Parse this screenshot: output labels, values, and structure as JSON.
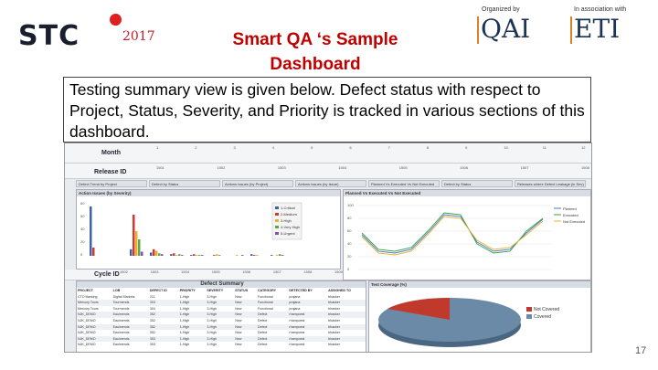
{
  "header": {
    "brand": "STC",
    "brand_year": "2017",
    "title": "Smart QA ‘s Sample Dashboard",
    "organized_by": "Organized by",
    "organizer": "QAI",
    "association": "In association with",
    "partner": "ETI"
  },
  "summary": "Testing summary view is given below. Defect status with respect to Project, Status, Severity, and Priority is tracked in various sections of this dashboard.",
  "dashboard": {
    "month_label": "Month",
    "release_label": "Release ID",
    "cycle_label": "Cycle ID",
    "tabs": [
      "Defect Trend by Project",
      "Defect by Status",
      "Actions Issues (by Project)",
      "Actions Issues (by Issue)",
      "Planned Vs Executed Vs Not Executed",
      "Defect by Status",
      "Releases where Defect Leakage (in Sev)"
    ],
    "severity_panel": "Action Issues (by Severity)",
    "planned_panel": "Planned Vs Executed Vs Not Executed",
    "defect_summary_title": "Defect Summary",
    "coverage_title": "Test Coverage (%)",
    "severity_legend": [
      "1-Critical",
      "2-Medium",
      "3-High",
      "4-Very High",
      "5-Urgent"
    ],
    "planned_legend": [
      "Planned",
      "Executed",
      "Not Executed"
    ],
    "coverage_legend": [
      "Not Covered",
      "Covered"
    ],
    "table_columns": [
      "PROJECT",
      "LOB",
      "DEFECT ID",
      "PRIORITY",
      "SEVERITY",
      "STATUS",
      "CATEGORY",
      "DETECTED BY",
      "ASSIGNED TO"
    ],
    "table_rows": [
      [
        "CTO Banking",
        "Digital Markets",
        "211",
        "1-High",
        "3-High",
        "New",
        "Functional",
        "prajana",
        "bhasker"
      ],
      [
        "Mercury Tours",
        "Tourmends",
        "303",
        "1-High",
        "3-High",
        "New",
        "Functional",
        "prajana",
        "bhasker"
      ],
      [
        "Mercury Tours",
        "Tourmends",
        "304",
        "1-High",
        "3-High",
        "New",
        "Functional",
        "prajana",
        "bhasker"
      ],
      [
        "NJK_DEMO",
        "Eauimends",
        "352",
        "1-High",
        "3-High",
        "New",
        "Defect",
        "rhampoest",
        "bhasker"
      ],
      [
        "NJK_DEMO",
        "Eauimends",
        "352",
        "1-High",
        "3-High",
        "New",
        "Defect",
        "rhampoest",
        "bhasker"
      ],
      [
        "NJK_DEMO",
        "Eauimends",
        "352",
        "1-High",
        "3-High",
        "New",
        "Defect",
        "rhampoest",
        "bhasker"
      ],
      [
        "NJK_DEMO",
        "Eauimends",
        "352",
        "1-High",
        "3-High",
        "New",
        "Defect",
        "rhampoest",
        "bhasker"
      ],
      [
        "NJK_DEMO",
        "Eauimends",
        "353",
        "1-High",
        "3-High",
        "New",
        "Defect",
        "rhampoest",
        "bhasker"
      ],
      [
        "NJK_DEMO",
        "Eauimends",
        "353",
        "1-High",
        "3-High",
        "New",
        "Defect",
        "rhampoest",
        "bhasker"
      ],
      [
        "NJK_DEMO",
        "Eauimends",
        "354",
        "1-High",
        "3-High",
        "New",
        "Defect",
        "rhampoest",
        "bhasker"
      ],
      [
        "NJK_DEMO",
        "Eauimends",
        "356",
        "1-High",
        "3-High",
        "New",
        "Defect",
        "rhampoest",
        "bhasker"
      ],
      [
        "NJK_DEMO",
        "Eauimends",
        "357",
        "1-High",
        "3-High",
        "New",
        "Defect",
        "rhampoest",
        "bhasker"
      ],
      [
        "NJK_DEMO",
        "Danis",
        "357",
        "1-High",
        "3-High",
        "New",
        "Defect",
        "rhampoest",
        "bhasker"
      ],
      [
        "NJK_DEMO",
        "Eauimends",
        "358",
        "1-High",
        "3-High",
        "New",
        "Defect",
        "rhampoest",
        "bhasker"
      ]
    ],
    "month_ticks": [
      "1",
      "2",
      "3",
      "4",
      "5",
      "6",
      "7",
      "8",
      "9",
      "10",
      "11",
      "12"
    ],
    "release_ticks": [
      "1501",
      "1502",
      "1503",
      "1504",
      "1505",
      "1506",
      "1507",
      "1508"
    ],
    "severity_yticks": [
      "60",
      "50",
      "40",
      "20",
      "0"
    ],
    "planned_yticks": [
      "100",
      "80",
      "60",
      "40",
      "20",
      "0"
    ],
    "cycle_ticks": [
      "1502",
      "1503",
      "1504",
      "1505",
      "1506",
      "1507",
      "1508",
      "1509"
    ]
  },
  "colors": {
    "title": "#c00000",
    "brand_dot": "#e02020",
    "planned": "#4a7bc4",
    "executed": "#3aa04a",
    "not_executed": "#e8b030",
    "pie_covered": "#6b8aa8",
    "pie_not_covered": "#c0392b"
  },
  "slide_number": "17"
}
